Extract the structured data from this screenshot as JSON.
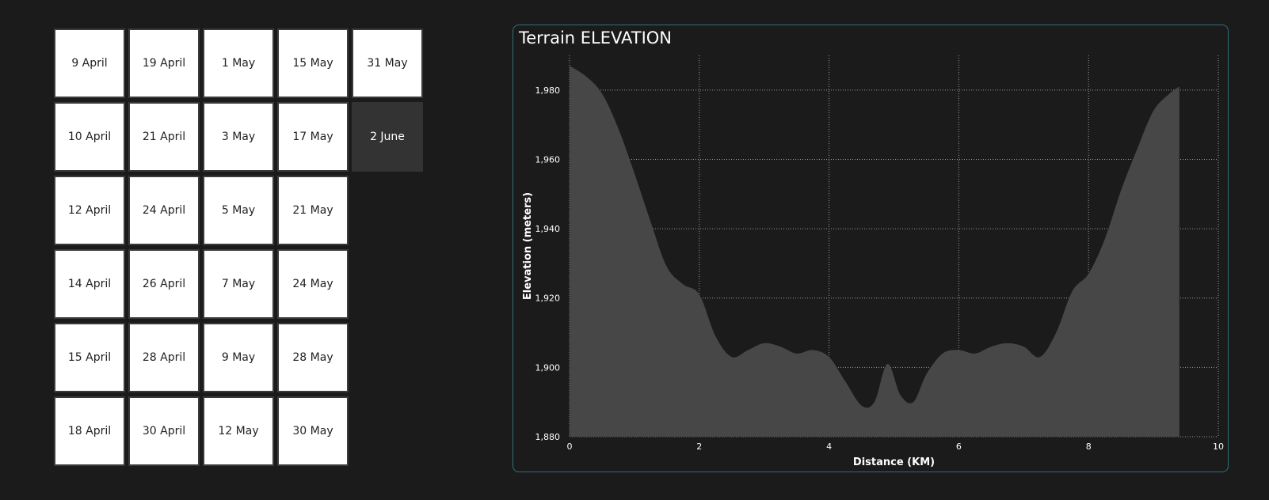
{
  "dates": [
    [
      "9 April",
      "19 April",
      "1 May",
      "15 May",
      "31 May"
    ],
    [
      "10 April",
      "21 April",
      "3 May",
      "17 May",
      "2 June"
    ],
    [
      "12 April",
      "24 April",
      "5 May",
      "21 May",
      ""
    ],
    [
      "14 April",
      "26 April",
      "7 May",
      "24 May",
      ""
    ],
    [
      "15 April",
      "28 April",
      "9 May",
      "28 May",
      ""
    ],
    [
      "18 April",
      "30 April",
      "12 May",
      "30 May",
      ""
    ]
  ],
  "selected_date": "2 June",
  "colors": {
    "tile_bg": "#ffffff",
    "tile_selected_bg": "#333333",
    "area_fill": "#474747",
    "panel_border": "#2e6f79",
    "gridline": "#9a9a9a"
  },
  "chart_data": {
    "type": "area",
    "title": "Terrain ELEVATION",
    "xlabel": "Distance (KM)",
    "ylabel": "Elevation (meters)",
    "xlim": [
      0,
      10
    ],
    "ylim": [
      1880,
      1990
    ],
    "x_ticks": [
      0,
      2,
      4,
      6,
      8,
      10
    ],
    "y_ticks": [
      1880,
      1900,
      1920,
      1940,
      1960,
      1980
    ],
    "x_tick_labels": [
      "0",
      "2",
      "4",
      "6",
      "8",
      "10"
    ],
    "y_tick_labels": [
      "1,880",
      "1,900",
      "1,920",
      "1,940",
      "1,960",
      "1,980"
    ],
    "grid": true,
    "series": [
      {
        "x": [
          0,
          0.25,
          0.5,
          0.75,
          1.0,
          1.25,
          1.5,
          1.75,
          2.0,
          2.25,
          2.5,
          2.75,
          3.0,
          3.25,
          3.5,
          3.75,
          4.0,
          4.25,
          4.5,
          4.7,
          4.9,
          5.1,
          5.3,
          5.5,
          5.75,
          6.0,
          6.25,
          6.5,
          6.75,
          7.0,
          7.25,
          7.5,
          7.75,
          8.0,
          8.25,
          8.5,
          8.75,
          9.0,
          9.25,
          9.4
        ],
        "y": [
          1987,
          1984,
          1979,
          1969,
          1956,
          1942,
          1929,
          1924,
          1921,
          1909,
          1903,
          1905,
          1907,
          1906,
          1904,
          1905,
          1903,
          1896,
          1889,
          1890,
          1901,
          1892,
          1890,
          1898,
          1904,
          1905,
          1904,
          1906,
          1907,
          1906,
          1903,
          1910,
          1922,
          1927,
          1937,
          1951,
          1963,
          1974,
          1979,
          1981
        ]
      }
    ]
  }
}
